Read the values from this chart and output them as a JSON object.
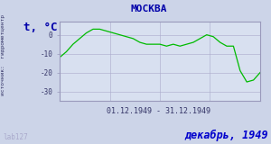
{
  "title": "МОСКВА",
  "ylabel": "t, °C",
  "xlabel_range": "01.12.1949 - 31.12.1949",
  "footer": "декабрь, 1949",
  "watermark": "lab127",
  "source_label": "источник:  гидрометцентр",
  "line_color": "#00bb00",
  "bg_color": "#ccd4e8",
  "plot_bg_color": "#d8e0f0",
  "border_color": "#9999bb",
  "title_color": "#0000aa",
  "footer_color": "#0000cc",
  "tick_label_color": "#333366",
  "watermark_color": "#aaaacc",
  "ylim": [
    -35,
    7
  ],
  "yticks": [
    0,
    -10,
    -20,
    -30
  ],
  "temperatures": [
    -12,
    -9,
    -5,
    -2,
    1,
    3,
    3,
    2,
    1,
    0,
    -1,
    -2,
    -4,
    -5,
    -5,
    -5,
    -6,
    -5,
    -6,
    -5,
    -4,
    -2,
    0,
    -1,
    -4,
    -6,
    -6,
    -19,
    -25,
    -24,
    -20
  ]
}
